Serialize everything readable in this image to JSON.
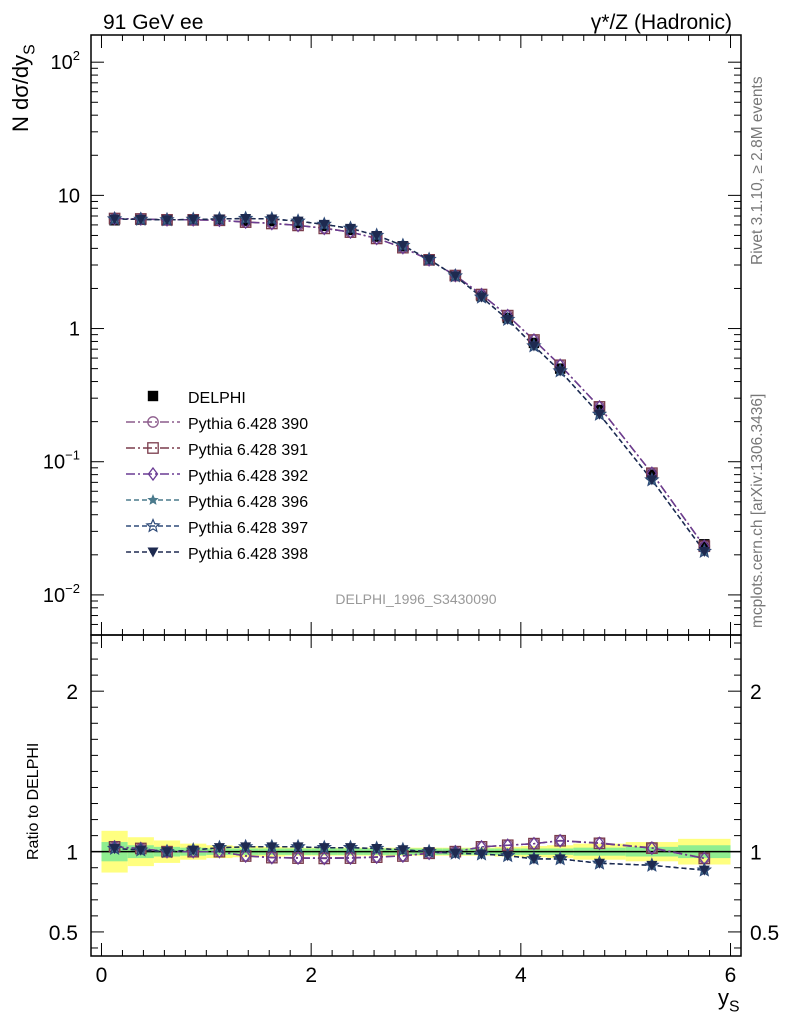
{
  "header": {
    "left": "91 GeV ee",
    "right": "γ*/Z (Hadronic)"
  },
  "side_labels": {
    "rivet": "Rivet 3.1.10, ≥ 2.8M events",
    "mcplots": "mcplots.cern.ch [arXiv:1306.3436]"
  },
  "watermark": "DELPHI_1996_S3430090",
  "chart_data": [
    {
      "type": "scatter",
      "panel": "main",
      "ylabel": "N dσ/dy_S",
      "yscale": "log",
      "xlim": [
        -0.1,
        6.1
      ],
      "ylim": [
        0.005,
        160
      ],
      "y_ticks": [
        {
          "value": 0.01,
          "base": "10",
          "exp": "−2"
        },
        {
          "value": 0.1,
          "base": "10",
          "exp": "−1"
        },
        {
          "value": 1,
          "base": "1",
          "exp": ""
        },
        {
          "value": 10,
          "base": "10",
          "exp": ""
        },
        {
          "value": 100,
          "base": "10",
          "exp": "2"
        }
      ],
      "legend_position": "left-middle",
      "x": [
        0.125,
        0.375,
        0.625,
        0.875,
        1.125,
        1.375,
        1.625,
        1.875,
        2.125,
        2.375,
        2.625,
        2.875,
        3.125,
        3.375,
        3.625,
        3.875,
        4.125,
        4.375,
        4.75,
        5.25,
        5.75
      ],
      "series": [
        {
          "name": "DELPHI",
          "color": "#000000",
          "marker": "square-filled",
          "dash": "",
          "values": [
            6.5,
            6.55,
            6.55,
            6.55,
            6.5,
            6.45,
            6.4,
            6.2,
            5.9,
            5.5,
            4.9,
            4.15,
            3.3,
            2.5,
            1.75,
            1.2,
            0.78,
            0.5,
            0.245,
            0.08,
            0.024
          ]
        },
        {
          "name": "Pythia 6.428 390",
          "color": "#8c5c8c",
          "marker": "circle-open",
          "dash": "9 3 2 3",
          "values": [
            6.7,
            6.65,
            6.55,
            6.55,
            6.5,
            6.3,
            6.2,
            5.95,
            5.7,
            5.3,
            4.75,
            4.05,
            3.28,
            2.5,
            1.8,
            1.25,
            0.82,
            0.53,
            0.258,
            0.082,
            0.0232
          ]
        },
        {
          "name": "Pythia 6.428 391",
          "color": "#7a3c4c",
          "marker": "square-open",
          "dash": "9 3 2 3",
          "values": [
            6.7,
            6.65,
            6.55,
            6.55,
            6.5,
            6.3,
            6.15,
            5.95,
            5.65,
            5.3,
            4.75,
            4.05,
            3.28,
            2.5,
            1.8,
            1.25,
            0.82,
            0.53,
            0.258,
            0.082,
            0.0232
          ]
        },
        {
          "name": "Pythia 6.428 392",
          "color": "#6a3c94",
          "marker": "diamond-open",
          "dash": "9 3 2 3",
          "values": [
            6.7,
            6.65,
            6.55,
            6.55,
            6.5,
            6.3,
            6.15,
            5.95,
            5.65,
            5.3,
            4.75,
            4.05,
            3.28,
            2.5,
            1.8,
            1.25,
            0.82,
            0.53,
            0.258,
            0.082,
            0.0232
          ]
        },
        {
          "name": "Pythia 6.428 396",
          "color": "#4a7a8c",
          "marker": "star-filled",
          "dash": "5 3",
          "values": [
            6.65,
            6.6,
            6.55,
            6.6,
            6.65,
            6.7,
            6.65,
            6.4,
            6.05,
            5.65,
            5.0,
            4.2,
            3.3,
            2.48,
            1.72,
            1.17,
            0.74,
            0.48,
            0.227,
            0.073,
            0.0212
          ]
        },
        {
          "name": "Pythia 6.428 397",
          "color": "#2e4a78",
          "marker": "star-open",
          "dash": "5 3",
          "values": [
            6.65,
            6.6,
            6.55,
            6.6,
            6.65,
            6.7,
            6.65,
            6.4,
            6.05,
            5.65,
            5.0,
            4.2,
            3.3,
            2.48,
            1.72,
            1.17,
            0.74,
            0.48,
            0.227,
            0.073,
            0.0212
          ]
        },
        {
          "name": "Pythia 6.428 398",
          "color": "#1e2a50",
          "marker": "triangle-down-filled",
          "dash": "5 3",
          "values": [
            6.65,
            6.6,
            6.55,
            6.6,
            6.65,
            6.7,
            6.65,
            6.4,
            6.05,
            5.65,
            5.0,
            4.2,
            3.3,
            2.48,
            1.72,
            1.17,
            0.74,
            0.48,
            0.227,
            0.073,
            0.0212
          ]
        }
      ]
    },
    {
      "type": "scatter",
      "panel": "ratio",
      "xlabel": "y_S",
      "ylabel": "Ratio to DELPHI",
      "xlim": [
        -0.1,
        6.1
      ],
      "ylim": [
        0.35,
        2.35
      ],
      "x_ticks": [
        0,
        2,
        4,
        6
      ],
      "y_ticks": [
        0.5,
        1,
        2
      ],
      "reference_line": 1,
      "bins": [
        [
          0,
          0.25
        ],
        [
          0.25,
          0.5
        ],
        [
          0.5,
          0.75
        ],
        [
          0.75,
          1.0
        ],
        [
          1.0,
          1.25
        ],
        [
          1.25,
          1.5
        ],
        [
          1.5,
          1.75
        ],
        [
          1.75,
          2.0
        ],
        [
          2.0,
          2.25
        ],
        [
          2.25,
          2.5
        ],
        [
          2.5,
          2.75
        ],
        [
          2.75,
          3.0
        ],
        [
          3.0,
          3.25
        ],
        [
          3.25,
          3.5
        ],
        [
          3.5,
          3.75
        ],
        [
          3.75,
          4.0
        ],
        [
          4.0,
          4.25
        ],
        [
          4.25,
          4.5
        ],
        [
          4.5,
          5.0
        ],
        [
          5.0,
          5.5
        ],
        [
          5.5,
          6.0
        ]
      ],
      "band_stat": [
        0.06,
        0.04,
        0.03,
        0.025,
        0.02,
        0.02,
        0.02,
        0.02,
        0.02,
        0.02,
        0.02,
        0.02,
        0.02,
        0.02,
        0.02,
        0.02,
        0.02,
        0.02,
        0.025,
        0.03,
        0.04
      ],
      "band_total": [
        0.13,
        0.09,
        0.07,
        0.05,
        0.04,
        0.035,
        0.03,
        0.025,
        0.025,
        0.025,
        0.025,
        0.025,
        0.025,
        0.025,
        0.025,
        0.03,
        0.035,
        0.04,
        0.05,
        0.06,
        0.08
      ],
      "band_colors": {
        "stat": "#90ee90",
        "total": "#ffff80"
      },
      "x": [
        0.125,
        0.375,
        0.625,
        0.875,
        1.125,
        1.375,
        1.625,
        1.875,
        2.125,
        2.375,
        2.625,
        2.875,
        3.125,
        3.375,
        3.625,
        3.875,
        4.125,
        4.375,
        4.75,
        5.25,
        5.75
      ],
      "series": [
        {
          "name": "Pythia 6.428 390",
          "color": "#8c5c8c",
          "marker": "circle-open",
          "dash": "9 3 2 3",
          "values": [
            1.03,
            1.02,
            1.0,
            1.0,
            1.0,
            0.975,
            0.965,
            0.962,
            0.962,
            0.963,
            0.968,
            0.975,
            0.992,
            1.0,
            1.03,
            1.04,
            1.05,
            1.07,
            1.055,
            1.025,
            0.96
          ]
        },
        {
          "name": "Pythia 6.428 391",
          "color": "#7a3c4c",
          "marker": "square-open",
          "dash": "9 3 2 3",
          "values": [
            1.03,
            1.02,
            1.0,
            1.0,
            1.0,
            0.973,
            0.963,
            0.96,
            0.958,
            0.96,
            0.966,
            0.973,
            0.99,
            1.0,
            1.03,
            1.04,
            1.05,
            1.068,
            1.052,
            1.022,
            0.958
          ]
        },
        {
          "name": "Pythia 6.428 392",
          "color": "#6a3c94",
          "marker": "diamond-open",
          "dash": "9 3 2 3",
          "values": [
            1.03,
            1.02,
            1.0,
            1.0,
            1.0,
            0.973,
            0.963,
            0.96,
            0.958,
            0.96,
            0.966,
            0.973,
            0.99,
            1.0,
            1.03,
            1.04,
            1.05,
            1.068,
            1.052,
            1.022,
            0.958
          ]
        },
        {
          "name": "Pythia 6.428 396",
          "color": "#4a7a8c",
          "marker": "star-filled",
          "dash": "5 3",
          "values": [
            1.02,
            1.01,
            1.0,
            1.01,
            1.025,
            1.03,
            1.03,
            1.03,
            1.025,
            1.025,
            1.02,
            1.012,
            1.0,
            0.99,
            0.985,
            0.975,
            0.955,
            0.955,
            0.928,
            0.915,
            0.885
          ]
        },
        {
          "name": "Pythia 6.428 397",
          "color": "#2e4a78",
          "marker": "star-open",
          "dash": "5 3",
          "values": [
            1.02,
            1.01,
            1.0,
            1.01,
            1.025,
            1.03,
            1.03,
            1.03,
            1.025,
            1.025,
            1.02,
            1.012,
            1.0,
            0.99,
            0.985,
            0.975,
            0.955,
            0.955,
            0.928,
            0.915,
            0.885
          ]
        },
        {
          "name": "Pythia 6.428 398",
          "color": "#1e2a50",
          "marker": "triangle-down-filled",
          "dash": "5 3",
          "values": [
            1.02,
            1.01,
            1.0,
            1.01,
            1.025,
            1.03,
            1.03,
            1.03,
            1.025,
            1.025,
            1.02,
            1.012,
            1.0,
            0.99,
            0.985,
            0.975,
            0.955,
            0.955,
            0.928,
            0.915,
            0.885
          ]
        }
      ]
    }
  ]
}
